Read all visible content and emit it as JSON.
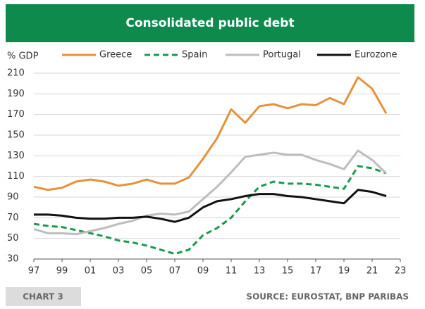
{
  "chart_data": {
    "type": "line",
    "title": "Consolidated public debt",
    "ylabel": "% GDP",
    "x": [
      1997,
      1998,
      1999,
      2000,
      2001,
      2002,
      2003,
      2004,
      2005,
      2006,
      2007,
      2008,
      2009,
      2010,
      2011,
      2012,
      2013,
      2014,
      2015,
      2016,
      2017,
      2018,
      2019,
      2020,
      2021,
      2022
    ],
    "series": [
      {
        "name": "Greece",
        "color": "#e8913b",
        "dash": false,
        "values": [
          100,
          97,
          99,
          105,
          107,
          105,
          101,
          103,
          107,
          103,
          103,
          109,
          127,
          147,
          175,
          162,
          178,
          180,
          176,
          180,
          179,
          186,
          180,
          206,
          195,
          171
        ]
      },
      {
        "name": "Spain",
        "color": "#1a9a4a",
        "dash": true,
        "values": [
          64,
          62,
          61,
          58,
          55,
          52,
          48,
          46,
          43,
          39,
          35,
          39,
          53,
          60,
          70,
          86,
          100,
          105,
          103,
          103,
          102,
          100,
          98,
          120,
          118,
          113
        ]
      },
      {
        "name": "Portugal",
        "color": "#bdbdbd",
        "dash": false,
        "values": [
          59,
          55,
          55,
          54,
          57,
          60,
          64,
          67,
          72,
          74,
          73,
          76,
          88,
          100,
          114,
          129,
          131,
          133,
          131,
          131,
          126,
          122,
          117,
          135,
          126,
          113
        ]
      },
      {
        "name": "Eurozone",
        "color": "#111111",
        "dash": false,
        "values": [
          73,
          73,
          72,
          70,
          69,
          69,
          70,
          70,
          71,
          69,
          66,
          70,
          80,
          86,
          88,
          91,
          93,
          93,
          91,
          90,
          88,
          86,
          84,
          97,
          95,
          91
        ]
      }
    ],
    "xlim": [
      1997,
      2023
    ],
    "xticks": [
      {
        "value": 1997,
        "label": "97"
      },
      {
        "value": 1999,
        "label": "99"
      },
      {
        "value": 2001,
        "label": "01"
      },
      {
        "value": 2003,
        "label": "03"
      },
      {
        "value": 2005,
        "label": "05"
      },
      {
        "value": 2007,
        "label": "07"
      },
      {
        "value": 2009,
        "label": "09"
      },
      {
        "value": 2011,
        "label": "11"
      },
      {
        "value": 2013,
        "label": "13"
      },
      {
        "value": 2015,
        "label": "15"
      },
      {
        "value": 2017,
        "label": "17"
      },
      {
        "value": 2019,
        "label": "19"
      },
      {
        "value": 2021,
        "label": "21"
      },
      {
        "value": 2023,
        "label": "23"
      }
    ],
    "ylim": [
      30,
      210
    ],
    "yticks": [
      30,
      50,
      70,
      90,
      110,
      130,
      150,
      170,
      190,
      210
    ],
    "grid": true,
    "chart_label": "CHART 3",
    "source": "SOURCE: EUROSTAT, BNP PARIBAS"
  }
}
